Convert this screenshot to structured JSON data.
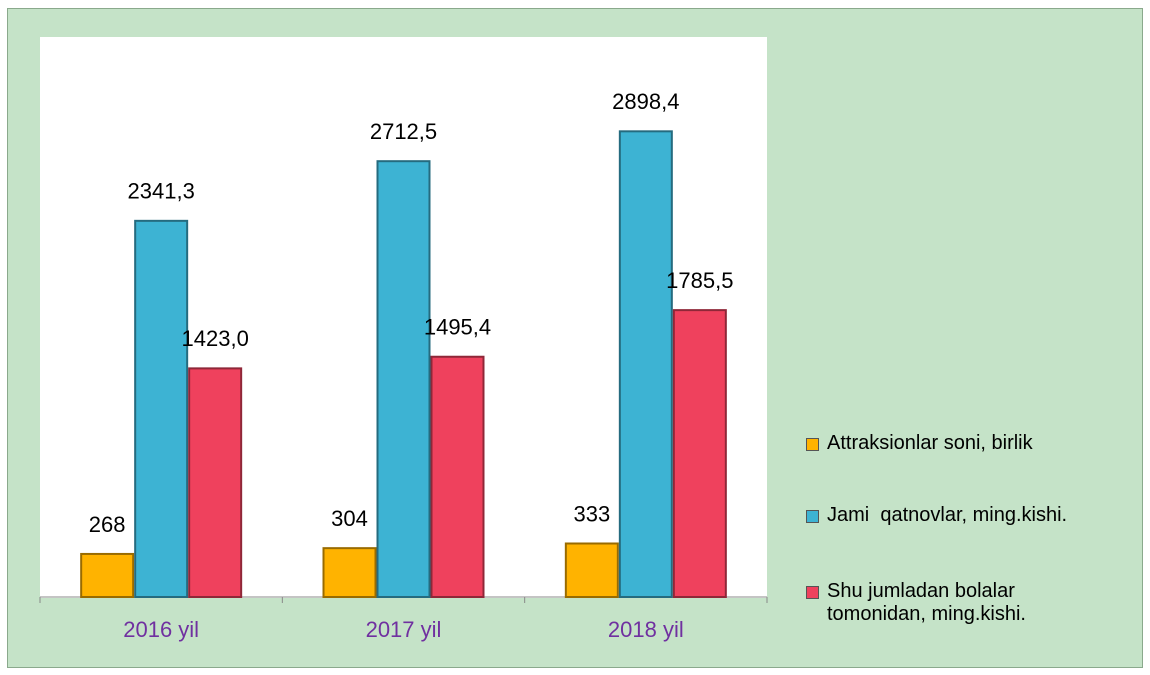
{
  "chart_data": {
    "type": "bar",
    "categories": [
      "2016 yil",
      "2017 yil",
      "2018 yil"
    ],
    "series": [
      {
        "name": "Attraksionlar soni, birlik",
        "color": "#ffb300",
        "values": [
          268,
          304,
          333
        ],
        "value_labels": [
          "268",
          "304",
          "333"
        ]
      },
      {
        "name": "Jami  qatnovlar, ming.kishi.",
        "color": "#3db3d3",
        "values": [
          2341.3,
          2712.5,
          2898.4
        ],
        "value_labels": [
          "2341,3",
          "2712,5",
          "2898,4"
        ]
      },
      {
        "name": "Shu jumladan bolalar tomonidan, ming.kishi.",
        "color": "#ef415d",
        "values": [
          1423.0,
          1495.4,
          1785.5
        ],
        "value_labels": [
          "1423,0",
          "1495,4",
          "1785,5"
        ]
      }
    ],
    "ylim": [
      0,
      3000
    ],
    "legend": "right"
  }
}
